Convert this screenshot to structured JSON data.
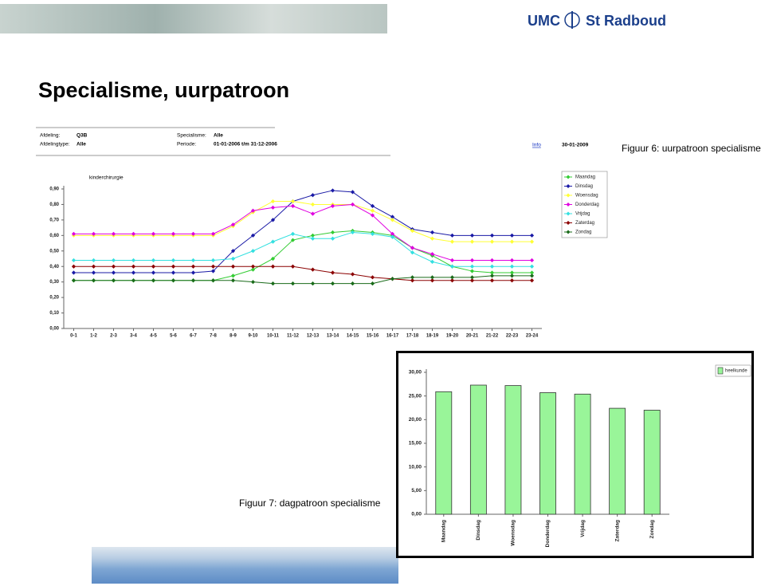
{
  "slide": {
    "title": "Specialisme, uurpatroon",
    "logo_left": "UMC",
    "logo_right": "St Radboud",
    "caption_1": "Figuur 6: uurpatroon specialisme",
    "caption_2": "Figuur 7: dagpatroon specialisme"
  },
  "report": {
    "fields": [
      {
        "label": "Afdeling:",
        "value": "Q3B"
      },
      {
        "label": "Afdelingtype:",
        "value": "Alle"
      },
      {
        "label": "Specialisme:",
        "value": "Alle"
      },
      {
        "label": "Periode:",
        "value": "01-01-2006 t/m 31-12-2006"
      }
    ],
    "info": "Info",
    "date": "30-01-2009"
  },
  "chart_data": [
    {
      "type": "line",
      "title": "kinderchirurgie",
      "categories": [
        "0-1",
        "1-2",
        "2-3",
        "3-4",
        "4-5",
        "5-6",
        "6-7",
        "7-8",
        "8-9",
        "9-10",
        "10-11",
        "11-12",
        "12-13",
        "13-14",
        "14-15",
        "15-16",
        "16-17",
        "17-18",
        "18-19",
        "19-20",
        "20-21",
        "21-22",
        "22-23",
        "23-24"
      ],
      "ylim": [
        0,
        0.9
      ],
      "yticks": [
        {
          "value": 0,
          "label": "0,00"
        },
        {
          "value": 0.1,
          "label": "0,10"
        },
        {
          "value": 0.2,
          "label": "0,20"
        },
        {
          "value": 0.3,
          "label": "0,30"
        },
        {
          "value": 0.4,
          "label": "0,40"
        },
        {
          "value": 0.5,
          "label": "0,50"
        },
        {
          "value": 0.6,
          "label": "0,60"
        },
        {
          "value": 0.7,
          "label": "0,70"
        },
        {
          "value": 0.8,
          "label": "0,80"
        },
        {
          "value": 0.9,
          "label": "0,90"
        }
      ],
      "grid": false,
      "legend": "top-right",
      "series": [
        {
          "name": "Maandag",
          "color": "#33cc33",
          "values": [
            0.31,
            0.31,
            0.31,
            0.31,
            0.31,
            0.31,
            0.31,
            0.31,
            0.34,
            0.38,
            0.45,
            0.57,
            0.6,
            0.62,
            0.63,
            0.62,
            0.6,
            0.52,
            0.47,
            0.4,
            0.37,
            0.36,
            0.36,
            0.36
          ]
        },
        {
          "name": "Dinsdag",
          "color": "#1a1aa6",
          "values": [
            0.36,
            0.36,
            0.36,
            0.36,
            0.36,
            0.36,
            0.36,
            0.37,
            0.5,
            0.6,
            0.7,
            0.82,
            0.86,
            0.89,
            0.88,
            0.79,
            0.72,
            0.64,
            0.62,
            0.6,
            0.6,
            0.6,
            0.6,
            0.6
          ]
        },
        {
          "name": "Woensdag",
          "color": "#ffff33",
          "values": [
            0.6,
            0.6,
            0.6,
            0.6,
            0.6,
            0.6,
            0.6,
            0.6,
            0.66,
            0.75,
            0.82,
            0.82,
            0.8,
            0.8,
            0.8,
            0.76,
            0.7,
            0.63,
            0.58,
            0.56,
            0.56,
            0.56,
            0.56,
            0.56
          ]
        },
        {
          "name": "Donderdag",
          "color": "#e000e0",
          "values": [
            0.61,
            0.61,
            0.61,
            0.61,
            0.61,
            0.61,
            0.61,
            0.61,
            0.67,
            0.76,
            0.78,
            0.79,
            0.74,
            0.79,
            0.8,
            0.73,
            0.61,
            0.52,
            0.48,
            0.44,
            0.44,
            0.44,
            0.44,
            0.44
          ]
        },
        {
          "name": "Vrijdag",
          "color": "#33e0e0",
          "values": [
            0.44,
            0.44,
            0.44,
            0.44,
            0.44,
            0.44,
            0.44,
            0.44,
            0.45,
            0.5,
            0.56,
            0.61,
            0.58,
            0.58,
            0.62,
            0.61,
            0.59,
            0.49,
            0.43,
            0.4,
            0.4,
            0.4,
            0.4,
            0.4
          ]
        },
        {
          "name": "Zaterdag",
          "color": "#8b0000",
          "values": [
            0.4,
            0.4,
            0.4,
            0.4,
            0.4,
            0.4,
            0.4,
            0.4,
            0.4,
            0.4,
            0.4,
            0.4,
            0.38,
            0.36,
            0.35,
            0.33,
            0.32,
            0.31,
            0.31,
            0.31,
            0.31,
            0.31,
            0.31,
            0.31
          ]
        },
        {
          "name": "Zondag",
          "color": "#1a6b1a",
          "values": [
            0.31,
            0.31,
            0.31,
            0.31,
            0.31,
            0.31,
            0.31,
            0.31,
            0.31,
            0.3,
            0.29,
            0.29,
            0.29,
            0.29,
            0.29,
            0.29,
            0.32,
            0.33,
            0.33,
            0.33,
            0.33,
            0.34,
            0.34,
            0.34
          ]
        }
      ]
    },
    {
      "type": "bar",
      "categories": [
        "Maandag",
        "Dinsdag",
        "Woensdag",
        "Donderdag",
        "Vrijdag",
        "Zaterdag",
        "Zondag"
      ],
      "ylim": [
        0,
        30
      ],
      "yticks": [
        {
          "value": 0,
          "label": "0,00"
        },
        {
          "value": 5,
          "label": "5,00"
        },
        {
          "value": 10,
          "label": "10,00"
        },
        {
          "value": 15,
          "label": "15,00"
        },
        {
          "value": 20,
          "label": "20,00"
        },
        {
          "value": 25,
          "label": "25,00"
        },
        {
          "value": 30,
          "label": "30,00"
        }
      ],
      "grid": false,
      "legend": "top-right",
      "series": [
        {
          "name": "heelkunde",
          "color": "#99f599",
          "values": [
            25.9,
            27.3,
            27.2,
            25.7,
            25.4,
            22.4,
            22.0
          ]
        }
      ]
    }
  ]
}
